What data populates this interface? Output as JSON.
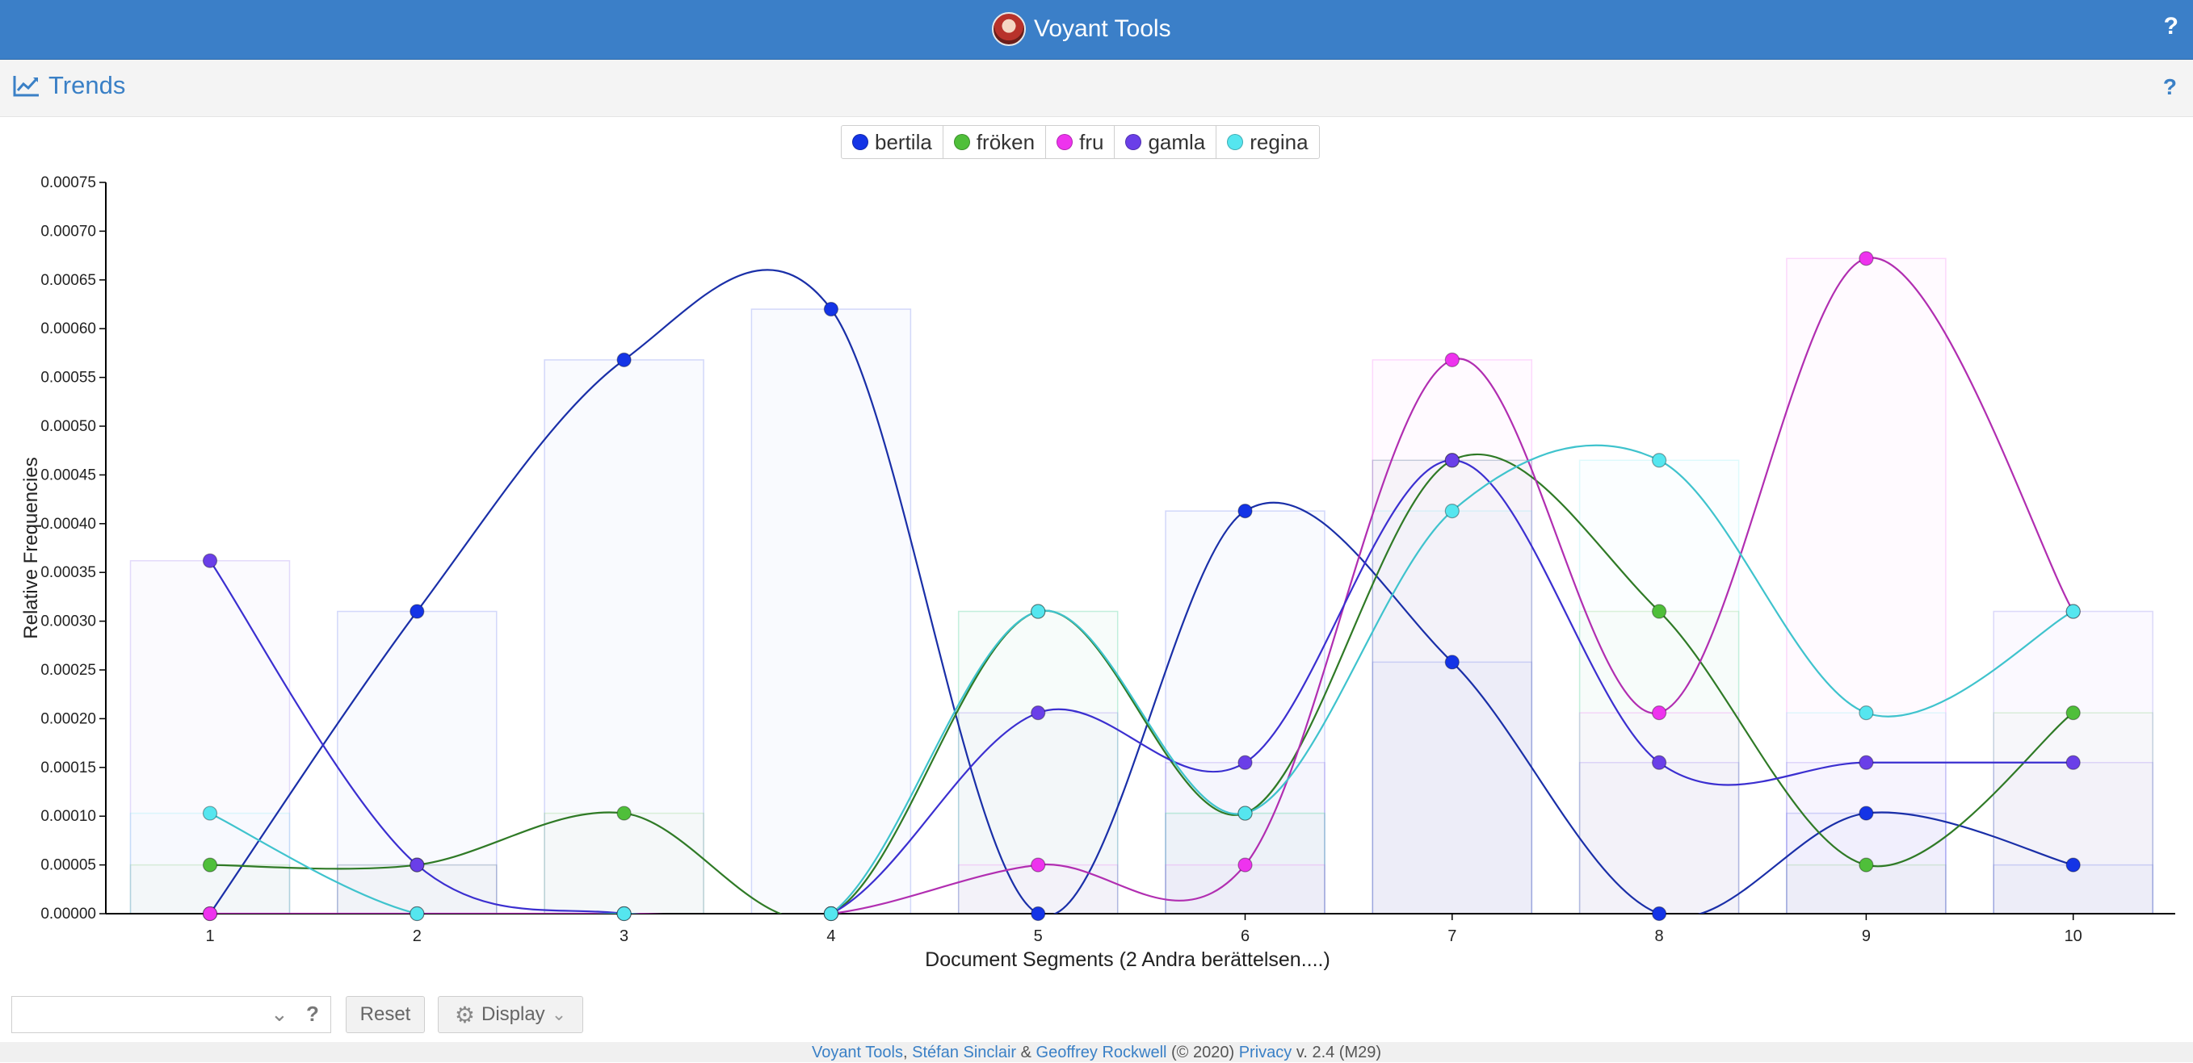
{
  "app": {
    "title": "Voyant Tools",
    "help_label": "?"
  },
  "panel": {
    "title": "Trends",
    "help_label": "?"
  },
  "colors": {
    "header_bg": "#3b7fc8",
    "bertila": "#1434e6",
    "froken": "#4fbf3a",
    "fru": "#ee33ee",
    "gamla": "#6a3fe8",
    "regina": "#55e6ef"
  },
  "legend": [
    {
      "label": "bertila",
      "color": "#1434e6"
    },
    {
      "label": "fröken",
      "color": "#4fbf3a"
    },
    {
      "label": "fru",
      "color": "#ee33ee"
    },
    {
      "label": "gamla",
      "color": "#6a3fe8"
    },
    {
      "label": "regina",
      "color": "#55e6ef"
    }
  ],
  "chart_data": {
    "type": "line",
    "xlabel": "Document Segments (2 Andra berättelsen....)",
    "ylabel": "Relative Frequencies",
    "categories": [
      "1",
      "2",
      "3",
      "4",
      "5",
      "6",
      "7",
      "8",
      "9",
      "10"
    ],
    "ylim": [
      0,
      0.00075
    ],
    "yticks": [
      "0.00000",
      "0.00005",
      "0.00010",
      "0.00015",
      "0.00020",
      "0.00025",
      "0.00030",
      "0.00035",
      "0.00040",
      "0.00045",
      "0.00050",
      "0.00055",
      "0.00060",
      "0.00065",
      "0.00070",
      "0.00075"
    ],
    "series": [
      {
        "name": "bertila",
        "color": "#1434e6",
        "line_color": "#1a2fa8",
        "values": [
          0,
          0.00031,
          0.000568,
          0.00062,
          0,
          0.000413,
          0.000258,
          0,
          0.000103,
          5e-05
        ]
      },
      {
        "name": "fröken",
        "color": "#4fbf3a",
        "line_color": "#2f7a26",
        "values": [
          5e-05,
          5e-05,
          0.000103,
          0,
          0.00031,
          0.000103,
          0.000465,
          0.00031,
          5e-05,
          0.000206
        ]
      },
      {
        "name": "fru",
        "color": "#ee33ee",
        "line_color": "#b12eb1",
        "values": [
          0,
          0,
          0,
          0,
          5e-05,
          5e-05,
          0.000568,
          0.000206,
          0.000672,
          0.00031
        ]
      },
      {
        "name": "gamla",
        "color": "#6a3fe8",
        "line_color": "#3b2fd0",
        "values": [
          0.000362,
          5e-05,
          0,
          0,
          0.000206,
          0.000155,
          0.000465,
          0.000155,
          0.000155,
          0.000155
        ]
      },
      {
        "name": "regina",
        "color": "#55e6ef",
        "line_color": "#3fc3cd",
        "values": [
          0.000103,
          0,
          0,
          0,
          0.00031,
          0.000103,
          0.000413,
          0.000465,
          0.000206,
          0.00031
        ]
      }
    ]
  },
  "toolbar": {
    "search_placeholder": "",
    "help_label": "?",
    "reset_label": "Reset",
    "display_label": "Display"
  },
  "footer": {
    "app_link": "Voyant Tools",
    "sep1": ", ",
    "author1": "Stéfan Sinclair",
    "amp": " & ",
    "author2": "Geoffrey Rockwell",
    "copyright": " (© 2020) ",
    "privacy": "Privacy",
    "version": " v. 2.4 (M29)"
  }
}
